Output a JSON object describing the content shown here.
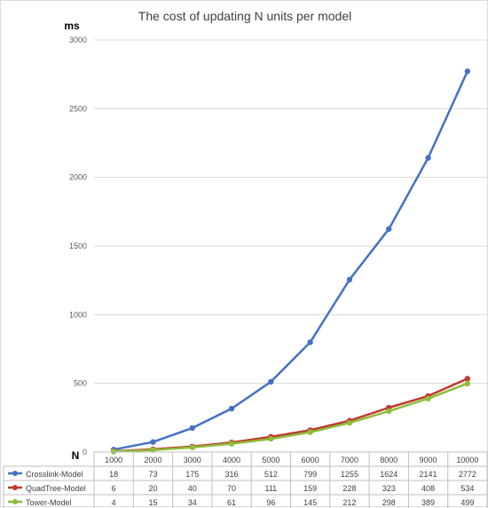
{
  "chart_data": {
    "type": "line",
    "title": "The cost of updating N units per model",
    "ylabel": "ms",
    "xlabel": "N",
    "ylim": [
      0,
      3000
    ],
    "yticks": [
      "0",
      "500",
      "1000",
      "1500",
      "2000",
      "2500",
      "3000"
    ],
    "categories": [
      "1000",
      "2000",
      "3000",
      "4000",
      "5000",
      "6000",
      "7000",
      "8000",
      "9000",
      "10000"
    ],
    "grid": true,
    "legend": "data-table-left",
    "series": [
      {
        "name": "Crosslink-Model",
        "color": "#4472c4",
        "values": [
          18,
          73,
          175,
          316,
          512,
          799,
          1255,
          1624,
          2141,
          2772
        ]
      },
      {
        "name": "QuadTree-Model",
        "color": "#c0392b",
        "values": [
          6,
          20,
          40,
          70,
          111,
          159,
          228,
          323,
          408,
          534
        ]
      },
      {
        "name": "Tower-Model",
        "color": "#8fbc3a",
        "values": [
          4,
          15,
          34,
          61,
          96,
          145,
          212,
          298,
          389,
          499
        ]
      }
    ]
  }
}
